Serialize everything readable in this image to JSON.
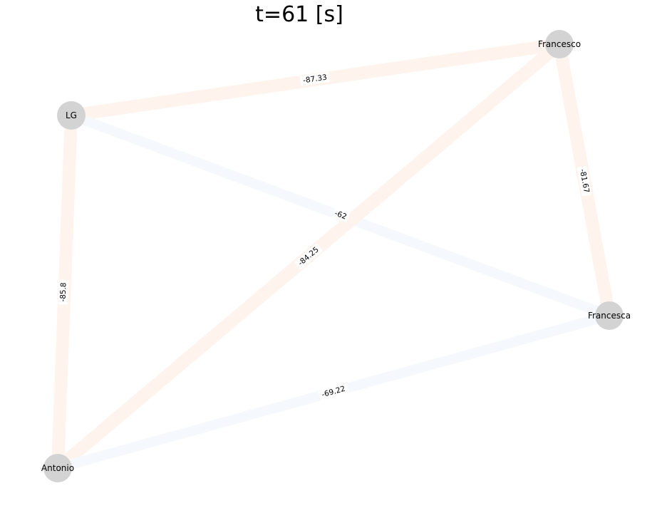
{
  "title": "t=61 [s]",
  "colors": {
    "node_fill": "#d3d3d3",
    "edge_reddish": "#fff3ed",
    "edge_bluish": "#f5f9fe",
    "label_bg": "#ffffff",
    "text": "#000000"
  },
  "nodes": [
    {
      "id": "francesco",
      "label": "Francesco"
    },
    {
      "id": "lg",
      "label": "LG"
    },
    {
      "id": "francesca",
      "label": "Francesca"
    },
    {
      "id": "antonio",
      "label": "Antonio"
    }
  ],
  "edges": [
    {
      "id": "lg-francesco",
      "source": "lg",
      "target": "francesco",
      "weight": "-87.33",
      "tone": "reddish"
    },
    {
      "id": "francesco-francesca",
      "source": "francesco",
      "target": "francesca",
      "weight": "-81.67",
      "tone": "reddish"
    },
    {
      "id": "lg-francesca",
      "source": "lg",
      "target": "francesca",
      "weight": "-62",
      "tone": "bluish"
    },
    {
      "id": "antonio-francesco",
      "source": "antonio",
      "target": "francesco",
      "weight": "-84.25",
      "tone": "reddish"
    },
    {
      "id": "lg-antonio",
      "source": "lg",
      "target": "antonio",
      "weight": "-85.8",
      "tone": "reddish"
    },
    {
      "id": "antonio-francesca",
      "source": "antonio",
      "target": "francesca",
      "weight": "-69.22",
      "tone": "bluish"
    }
  ]
}
